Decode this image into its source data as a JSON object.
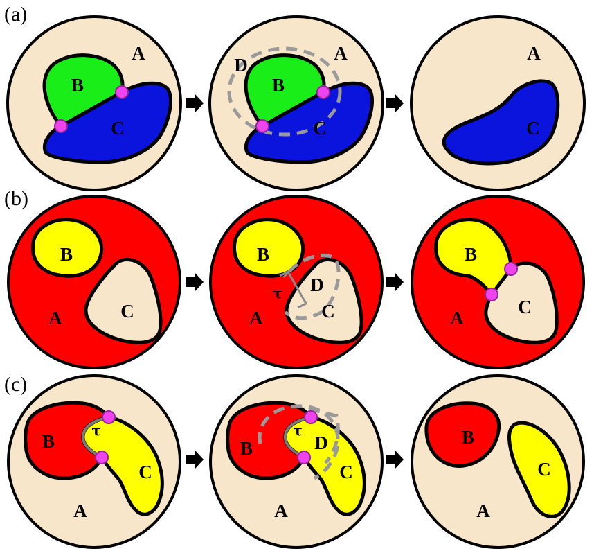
{
  "rows": [
    {
      "label": "(a)",
      "panels": [
        {
          "region_a": "A",
          "region_b": "B",
          "region_c": "C"
        },
        {
          "region_a": "A",
          "region_b": "B",
          "region_c": "C",
          "region_d": "D"
        },
        {
          "region_a": "A",
          "region_c": "C"
        }
      ]
    },
    {
      "label": "(b)",
      "panels": [
        {
          "region_a": "A",
          "region_b": "B",
          "region_c": "C"
        },
        {
          "region_a": "A",
          "region_b": "B",
          "region_c": "C",
          "region_d": "D",
          "tau": "τ"
        },
        {
          "region_a": "A",
          "region_b": "B",
          "region_c": "C"
        }
      ]
    },
    {
      "label": "(c)",
      "panels": [
        {
          "region_a": "A",
          "region_b": "B",
          "region_c": "C",
          "tau": "τ"
        },
        {
          "region_a": "A",
          "region_b": "B",
          "region_c": "C",
          "region_d": "D",
          "tau": "τ"
        },
        {
          "region_a": "A",
          "region_b": "B",
          "region_c": "C"
        }
      ]
    }
  ],
  "colors": {
    "beige": "#f7e6c9",
    "green": "#19ee19",
    "blue": "#0a14dd",
    "red": "#ff0000",
    "yellow": "#ffff00",
    "vertex": "#ee44ee",
    "dashed_outline": "#9a9a9a",
    "arrow": "#000000"
  }
}
